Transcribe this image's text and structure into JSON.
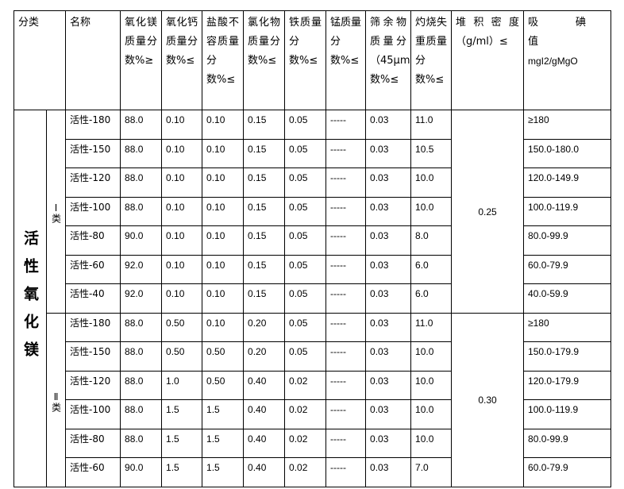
{
  "headers": {
    "category": "分类",
    "name": "名称",
    "mgo": "氧化镁质量分数%≥",
    "cao": "氧化钙质量分数%≤",
    "hcl": "盐酸不容质量分数%≤",
    "cl": "氯化物质量分数%≤",
    "fe": "铁质量分数%≤",
    "mn": "锰质量分数%≤",
    "sieve": "筛余物质量分（45μm）数%≤",
    "loi": "灼烧失重质量分数%≤",
    "density": "堆积密度（g/ml）≤",
    "iodine": "吸碘值",
    "iodine_unit": "mgI2/gMgO"
  },
  "category_label": "活性氧化镁",
  "groups": [
    {
      "label": "Ⅰ类",
      "density": "0.25",
      "rows": [
        [
          "活性-180",
          "88.0",
          "0.10",
          "0.10",
          "0.15",
          "0.05",
          "-----",
          "0.03",
          "11.0",
          "≥180"
        ],
        [
          "活性-150",
          "88.0",
          "0.10",
          "0.10",
          "0.15",
          "0.05",
          "-----",
          "0.03",
          "10.5",
          "150.0-180.0"
        ],
        [
          "活性-120",
          "88.0",
          "0.10",
          "0.10",
          "0.15",
          "0.05",
          "-----",
          "0.03",
          "10.0",
          "120.0-149.9"
        ],
        [
          "活性-100",
          "88.0",
          "0.10",
          "0.10",
          "0.15",
          "0.05",
          "-----",
          "0.03",
          "10.0",
          "100.0-119.9"
        ],
        [
          "活性-80",
          "90.0",
          "0.10",
          "0.10",
          "0.15",
          "0.05",
          "-----",
          "0.03",
          "8.0",
          "80.0-99.9"
        ],
        [
          "活性-60",
          "92.0",
          "0.10",
          "0.10",
          "0.15",
          "0.05",
          "-----",
          "0.03",
          "6.0",
          "60.0-79.9"
        ],
        [
          "活性-40",
          "92.0",
          "0.10",
          "0.10",
          "0.15",
          "0.05",
          "-----",
          "0.03",
          "6.0",
          "40.0-59.9"
        ]
      ]
    },
    {
      "label": "Ⅱ类",
      "density": "0.30",
      "rows": [
        [
          "活性-180",
          "88.0",
          "0.50",
          "0.10",
          "0.20",
          "0.05",
          "-----",
          "0.03",
          "11.0",
          "≥180"
        ],
        [
          "活性-150",
          "88.0",
          "0.50",
          "0.50",
          "0.20",
          "0.05",
          "-----",
          "0.03",
          "10.0",
          "150.0-179.9"
        ],
        [
          "活性-120",
          "88.0",
          "1.0",
          "0.50",
          "0.40",
          "0.02",
          "-----",
          "0.03",
          "10.0",
          "120.0-179.9"
        ],
        [
          "活性-100",
          "88.0",
          "1.5",
          "1.5",
          "0.40",
          "0.02",
          "-----",
          "0.03",
          "10.0",
          "100.0-119.9"
        ],
        [
          "活性-80",
          "88.0",
          "1.5",
          "1.5",
          "0.40",
          "0.02",
          "-----",
          "0.03",
          "10.0",
          "80.0-99.9"
        ],
        [
          "活性-60",
          "90.0",
          "1.5",
          "1.5",
          "0.40",
          "0.02",
          "-----",
          "0.03",
          "7.0",
          "60.0-79.9"
        ]
      ]
    }
  ]
}
